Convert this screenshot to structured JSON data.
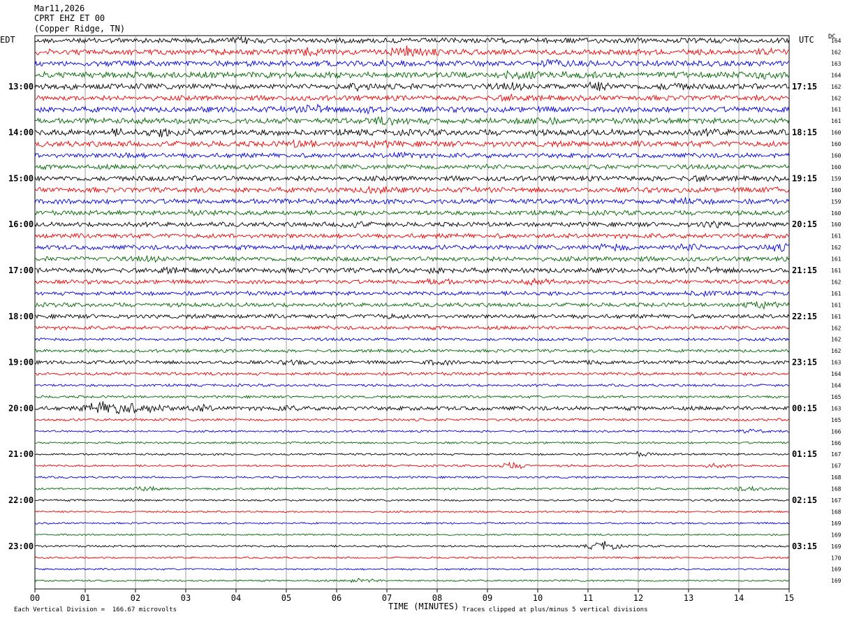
{
  "header": {
    "date": "Mar11,2026",
    "station": "CPRT EHZ ET 00",
    "location": "(Copper Ridge, TN)"
  },
  "left_tz": "EDT",
  "right_tz": "UTC",
  "dc_label": "DC",
  "footer": {
    "scale_note": "Each Vertical Division =  166.67 microvolts",
    "clip_note": "Traces clipped at plus/minus 5 vertical divisions"
  },
  "chart_data": {
    "type": "line",
    "title": "",
    "xlabel": "TIME (MINUTES)",
    "ylabel": "",
    "xlim": [
      0,
      15
    ],
    "x_ticks": [
      "00",
      "01",
      "02",
      "03",
      "04",
      "05",
      "06",
      "07",
      "08",
      "09",
      "10",
      "11",
      "12",
      "13",
      "14",
      "15"
    ],
    "grid": "vertical lines at each minute",
    "row_count": 48,
    "minutes_per_row": 15,
    "color_cycle": [
      "#000000",
      "#ee0000",
      "#0000dd",
      "#006600"
    ],
    "left_hour_labels": [
      {
        "row": 4,
        "label": "13:00"
      },
      {
        "row": 8,
        "label": "14:00"
      },
      {
        "row": 12,
        "label": "15:00"
      },
      {
        "row": 16,
        "label": "16:00"
      },
      {
        "row": 20,
        "label": "17:00"
      },
      {
        "row": 24,
        "label": "18:00"
      },
      {
        "row": 28,
        "label": "19:00"
      },
      {
        "row": 32,
        "label": "20:00"
      },
      {
        "row": 36,
        "label": "21:00"
      },
      {
        "row": 40,
        "label": "22:00"
      },
      {
        "row": 44,
        "label": "23:00"
      }
    ],
    "right_hour_labels": [
      {
        "row": 4,
        "label": "17:15"
      },
      {
        "row": 8,
        "label": "18:15"
      },
      {
        "row": 12,
        "label": "19:15"
      },
      {
        "row": 16,
        "label": "20:15"
      },
      {
        "row": 20,
        "label": "21:15"
      },
      {
        "row": 24,
        "label": "22:15"
      },
      {
        "row": 28,
        "label": "23:15"
      },
      {
        "row": 32,
        "label": "00:15"
      },
      {
        "row": 36,
        "label": "01:15"
      },
      {
        "row": 40,
        "label": "02:15"
      },
      {
        "row": 44,
        "label": "03:15"
      }
    ],
    "dc_offsets": [
      "164",
      "162",
      "163",
      "164",
      "162",
      "162",
      "161",
      "161",
      "160",
      "160",
      "160",
      "160",
      "159",
      "160",
      "159",
      "160",
      "160",
      "161",
      "162",
      "161",
      "161",
      "162",
      "161",
      "161",
      "161",
      "162",
      "162",
      "162",
      "163",
      "164",
      "164",
      "165",
      "163",
      "165",
      "166",
      "166",
      "167",
      "167",
      "168",
      "168",
      "167",
      "168",
      "169",
      "169",
      "169",
      "170",
      "169",
      "169"
    ],
    "row_activity": [
      [
        [
          0,
          1.0
        ],
        [
          4.2,
          1.6
        ],
        [
          10.5,
          1.3
        ]
      ],
      [
        [
          0,
          1.1
        ],
        [
          5.5,
          2.0
        ],
        [
          7.4,
          2.4
        ],
        [
          8.0,
          1.8
        ],
        [
          14.6,
          1.6
        ]
      ],
      [
        [
          0,
          1.1
        ],
        [
          7.0,
          1.5
        ],
        [
          10.3,
          1.8
        ]
      ],
      [
        [
          0,
          1.2
        ],
        [
          9.6,
          2.0
        ],
        [
          10.8,
          1.7
        ],
        [
          14.4,
          2.0
        ]
      ],
      [
        [
          0,
          1.1
        ],
        [
          6.4,
          1.9
        ],
        [
          9.5,
          1.7
        ],
        [
          11.2,
          2.1
        ],
        [
          12.7,
          1.8
        ]
      ],
      [
        [
          0,
          1.0
        ],
        [
          9.5,
          1.8
        ]
      ],
      [
        [
          0,
          1.1
        ],
        [
          5.6,
          2.2
        ],
        [
          6.7,
          2.0
        ],
        [
          14.9,
          1.6
        ]
      ],
      [
        [
          0,
          1.1
        ],
        [
          6.9,
          1.8
        ],
        [
          7.5,
          1.6
        ],
        [
          10.0,
          2.2
        ]
      ],
      [
        [
          0,
          1.2
        ],
        [
          1.6,
          1.7
        ],
        [
          2.5,
          1.9
        ],
        [
          3.2,
          1.8
        ],
        [
          13.4,
          1.5
        ]
      ],
      [
        [
          0,
          1.1
        ],
        [
          5.3,
          1.9
        ],
        [
          6.8,
          1.5
        ]
      ],
      [
        [
          0,
          0.9
        ],
        [
          1.8,
          1.4
        ],
        [
          7.3,
          1.6
        ]
      ],
      [
        [
          0,
          0.9
        ],
        [
          3.5,
          1.3
        ],
        [
          9.0,
          1.2
        ]
      ],
      [
        [
          0,
          1.0
        ],
        [
          13.3,
          1.6
        ]
      ],
      [
        [
          0,
          1.0
        ],
        [
          6.8,
          2.0
        ],
        [
          14.8,
          1.8
        ]
      ],
      [
        [
          0,
          1.0
        ],
        [
          13.0,
          1.7
        ]
      ],
      [
        [
          0,
          0.9
        ],
        [
          3.3,
          1.5
        ]
      ],
      [
        [
          0,
          0.9
        ],
        [
          6.3,
          1.7
        ],
        [
          13.5,
          1.6
        ]
      ],
      [
        [
          0,
          0.9
        ]
      ],
      [
        [
          0,
          0.9
        ],
        [
          11.5,
          1.8
        ],
        [
          13.0,
          1.9
        ],
        [
          14.8,
          1.8
        ]
      ],
      [
        [
          0,
          0.9
        ],
        [
          2.3,
          1.4
        ],
        [
          11.8,
          1.2
        ]
      ],
      [
        [
          0,
          1.0
        ],
        [
          2.6,
          1.5
        ],
        [
          8.0,
          1.4
        ],
        [
          13.4,
          1.5
        ]
      ],
      [
        [
          0,
          0.8
        ],
        [
          8.0,
          1.6
        ],
        [
          10.0,
          1.5
        ]
      ],
      [
        [
          0,
          0.8
        ],
        [
          13.3,
          1.4
        ]
      ],
      [
        [
          0,
          0.8
        ],
        [
          14.4,
          1.8
        ]
      ],
      [
        [
          0,
          0.8
        ],
        [
          7.0,
          1.3
        ]
      ],
      [
        [
          0,
          0.7
        ]
      ],
      [
        [
          0,
          0.6
        ]
      ],
      [
        [
          0,
          0.6
        ]
      ],
      [
        [
          0,
          0.7
        ],
        [
          5.2,
          1.2
        ],
        [
          8.0,
          1.4
        ],
        [
          11.2,
          1.2
        ]
      ],
      [
        [
          0,
          0.6
        ]
      ],
      [
        [
          0,
          0.5
        ]
      ],
      [
        [
          0,
          0.5
        ]
      ],
      [
        [
          0,
          0.8
        ],
        [
          1.3,
          3.0
        ],
        [
          1.7,
          3.6
        ],
        [
          2.4,
          2.0
        ],
        [
          3.3,
          1.6
        ],
        [
          5.0,
          1.2
        ]
      ],
      [
        [
          0,
          0.5
        ]
      ],
      [
        [
          0,
          0.4
        ],
        [
          14.3,
          1.0
        ]
      ],
      [
        [
          0,
          0.4
        ]
      ],
      [
        [
          0,
          0.4
        ],
        [
          12.0,
          1.0
        ]
      ],
      [
        [
          0,
          0.4
        ],
        [
          9.5,
          1.4
        ],
        [
          13.5,
          1.0
        ]
      ],
      [
        [
          0,
          0.4
        ]
      ],
      [
        [
          0,
          0.4
        ],
        [
          2.2,
          1.3
        ],
        [
          14.2,
          1.2
        ]
      ],
      [
        [
          0,
          0.4
        ]
      ],
      [
        [
          0,
          0.35
        ]
      ],
      [
        [
          0,
          0.35
        ]
      ],
      [
        [
          0,
          0.35
        ]
      ],
      [
        [
          0,
          0.4
        ],
        [
          11.3,
          2.2
        ]
      ],
      [
        [
          0,
          0.35
        ]
      ],
      [
        [
          0,
          0.35
        ]
      ],
      [
        [
          0,
          0.35
        ],
        [
          6.5,
          1.0
        ]
      ]
    ]
  }
}
